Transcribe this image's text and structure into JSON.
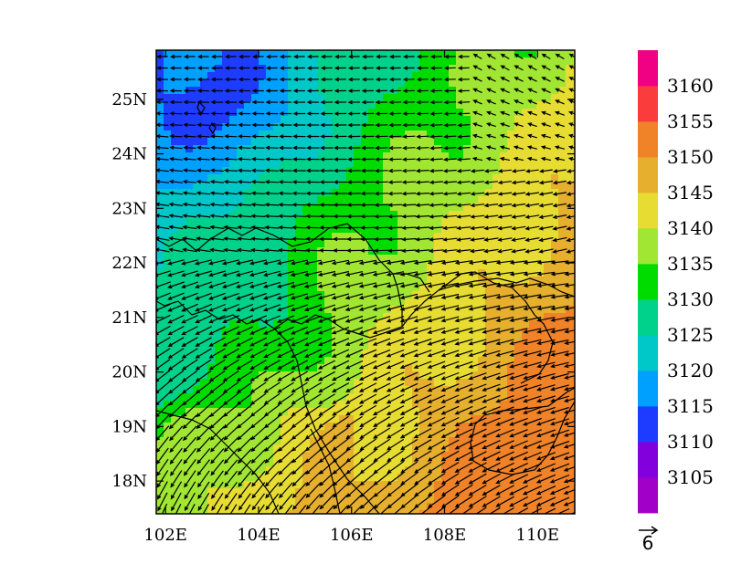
{
  "map": {
    "lat_ticks": [
      "25N",
      "24N",
      "23N",
      "22N",
      "21N",
      "20N",
      "19N",
      "18N"
    ],
    "lon_ticks": [
      "102E",
      "104E",
      "106E",
      "108E",
      "110E"
    ],
    "lon_range": [
      101.8,
      110.8
    ],
    "lat_range": [
      17.4,
      25.9
    ]
  },
  "colorbar": {
    "colors": [
      "#a000c8",
      "#8200dc",
      "#1e3cff",
      "#00a0ff",
      "#00c8c8",
      "#00d28c",
      "#00dc00",
      "#a0e632",
      "#e6dc32",
      "#e6af2d",
      "#f08228",
      "#fa3c3c",
      "#f00082"
    ],
    "labels": [
      "3160",
      "3155",
      "3150",
      "3145",
      "3140",
      "3135",
      "3130",
      "3125",
      "3120",
      "3115",
      "3110",
      "3105"
    ]
  },
  "vectors": {
    "reference_label": "6"
  }
}
